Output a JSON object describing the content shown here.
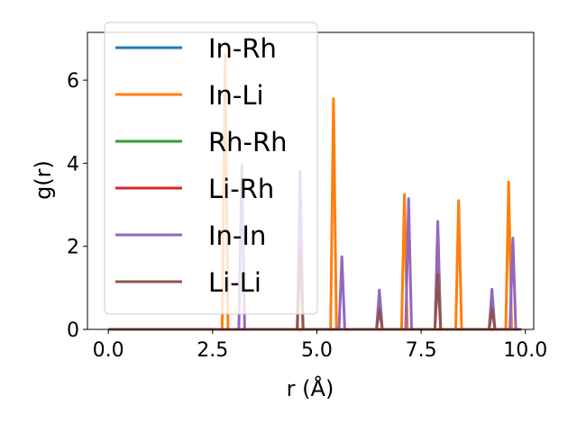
{
  "chart_data": {
    "type": "line",
    "title": "",
    "xlabel": "r (Å)",
    "ylabel": "g(r)",
    "xlim": [
      -0.5,
      10.2
    ],
    "ylim": [
      0,
      7.15
    ],
    "x_ticks": [
      0.0,
      2.5,
      5.0,
      7.5,
      10.0
    ],
    "x_tick_labels": [
      "0.0",
      "2.5",
      "5.0",
      "7.5",
      "10.0"
    ],
    "y_ticks": [
      0,
      2,
      4,
      6
    ],
    "y_tick_labels": [
      "0",
      "2",
      "4",
      "6"
    ],
    "grid": false,
    "legend_position": "upper-left",
    "series": [
      {
        "name": "In-Rh",
        "color": "#1f77b4",
        "peaks": []
      },
      {
        "name": "In-Li",
        "color": "#ff7f0e",
        "peaks": [
          [
            2.8,
            6.6
          ],
          [
            5.4,
            5.55
          ],
          [
            7.1,
            3.25
          ],
          [
            8.4,
            3.1
          ],
          [
            9.6,
            3.55
          ]
        ]
      },
      {
        "name": "Rh-Rh",
        "color": "#2ca02c",
        "peaks": []
      },
      {
        "name": "Li-Rh",
        "color": "#d62728",
        "peaks": []
      },
      {
        "name": "In-In",
        "color": "#9467bd",
        "peaks": [
          [
            3.2,
            3.95
          ],
          [
            4.6,
            3.8
          ],
          [
            5.6,
            1.75
          ],
          [
            6.5,
            0.95
          ],
          [
            7.2,
            3.15
          ],
          [
            7.9,
            2.6
          ],
          [
            9.2,
            0.97
          ],
          [
            9.7,
            2.2
          ]
        ]
      },
      {
        "name": "Li-Li",
        "color": "#8c564b",
        "peaks": [
          [
            4.6,
            1.9
          ],
          [
            6.5,
            0.48
          ],
          [
            7.9,
            1.33
          ],
          [
            9.2,
            0.5
          ]
        ]
      }
    ]
  }
}
